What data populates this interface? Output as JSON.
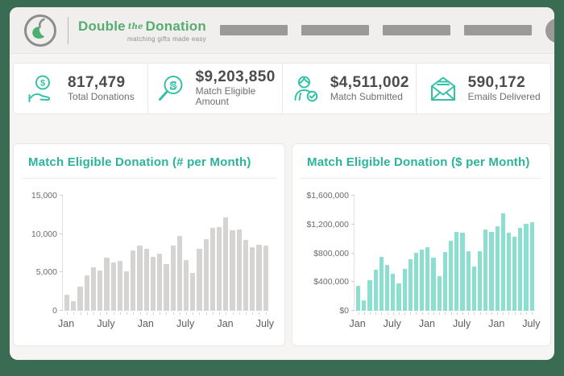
{
  "header": {
    "brand": {
      "word1": "Double",
      "word2": "the",
      "word3": "Donation",
      "tagline": "matching gifts made easy"
    },
    "nav_placeholder_count": 4
  },
  "stats": [
    {
      "icon": "hand-coin-icon",
      "value": "817,479",
      "label": "Total Donations"
    },
    {
      "icon": "magnifier-dollar-icon",
      "value": "$9,203,850",
      "label": "Match Eligible Amount"
    },
    {
      "icon": "person-check-icon",
      "value": "$4,511,002",
      "label": "Match Submitted"
    },
    {
      "icon": "envelope-icon",
      "value": "590,172",
      "label": "Emails Delivered"
    }
  ],
  "chart_data": [
    {
      "type": "bar",
      "title": "Match Eligible Donation (# per Month)",
      "ylabel": "",
      "ylim": [
        0,
        15000
      ],
      "y_tick_labels": [
        "0",
        "5,000",
        "10,000",
        "15,000"
      ],
      "x_tick_labels": [
        "Jan",
        "July",
        "Jan",
        "July",
        "Jan",
        "July"
      ],
      "x_tick_positions": [
        0,
        6,
        12,
        18,
        24,
        30
      ],
      "grid": false,
      "bar_color": "#d5d4d2",
      "values": [
        2100,
        1250,
        3170,
        4570,
        5620,
        5280,
        6900,
        6270,
        6510,
        5180,
        7920,
        8550,
        8100,
        7000,
        7500,
        6100,
        8520,
        9790,
        6580,
        4930,
        8100,
        9300,
        10840,
        10910,
        12140,
        10450,
        10630,
        9220,
        8270,
        8620,
        8520
      ]
    },
    {
      "type": "bar",
      "title": "Match Eligible Donation ($ per Month)",
      "ylabel": "",
      "ylim": [
        0,
        1600000
      ],
      "y_tick_labels": [
        "$0",
        "$400,000",
        "$800,000",
        "$1,200,000",
        "$1,600,000"
      ],
      "x_tick_labels": [
        "Jan",
        "July",
        "Jan",
        "July",
        "Jan",
        "July"
      ],
      "x_tick_positions": [
        0,
        6,
        12,
        18,
        24,
        30
      ],
      "grid": false,
      "bar_color": "#8adfd0",
      "values": [
        350000,
        150000,
        430000,
        575000,
        750000,
        640000,
        520000,
        380000,
        585000,
        715000,
        805000,
        850000,
        885000,
        735000,
        480000,
        820000,
        975000,
        1100000,
        1090000,
        830000,
        615000,
        830000,
        1125000,
        1100000,
        1180000,
        1355000,
        1090000,
        1030000,
        1155000,
        1210000,
        1230000
      ]
    }
  ],
  "colors": {
    "frame_green": "#3a6b53",
    "accent_teal": "#2bb39b",
    "icon_teal": "#35c1a8",
    "logo_green": "#55ad72",
    "bar_gray": "#d5d4d2",
    "bar_mint": "#8adfd0",
    "placeholder_gray": "#9b9a99",
    "value_text": "#4c4c4c"
  }
}
